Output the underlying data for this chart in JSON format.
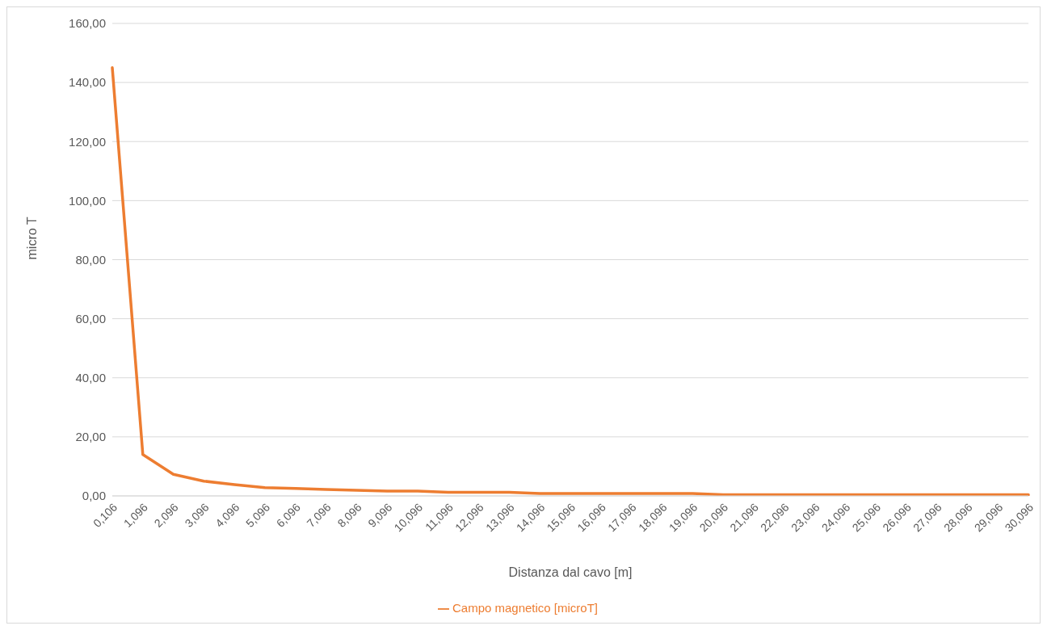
{
  "chart_data": {
    "type": "line",
    "xlabel": "Distanza dal cavo [m]",
    "ylabel": "micro T",
    "categories": [
      "0,106",
      "1,096",
      "2,096",
      "3,096",
      "4,096",
      "5,096",
      "6,096",
      "7,096",
      "8,096",
      "9,096",
      "10,096",
      "11,096",
      "12,096",
      "13,096",
      "14,096",
      "15,096",
      "16,096",
      "17,096",
      "18,096",
      "19,096",
      "20,096",
      "21,096",
      "22,096",
      "23,096",
      "24,096",
      "25,096",
      "26,096",
      "27,096",
      "28,096",
      "29,096",
      "30,096"
    ],
    "series": [
      {
        "name": "Campo magnetico [microT]",
        "color": "#ed7d31",
        "values": [
          145,
          14,
          7.3,
          5,
          3.8,
          2.8,
          2.5,
          2.2,
          1.9,
          1.6,
          1.6,
          1.2,
          1.2,
          1.2,
          0.8,
          0.8,
          0.8,
          0.8,
          0.8,
          0.8,
          0.4,
          0.4,
          0.4,
          0.4,
          0.4,
          0.4,
          0.4,
          0.4,
          0.4,
          0.4,
          0.4
        ]
      }
    ],
    "ylim": [
      0,
      160
    ],
    "yticks": [
      {
        "value": 0,
        "label": "0,00"
      },
      {
        "value": 20,
        "label": "20,00"
      },
      {
        "value": 40,
        "label": "40,00"
      },
      {
        "value": 60,
        "label": "60,00"
      },
      {
        "value": 80,
        "label": "80,00"
      },
      {
        "value": 100,
        "label": "100,00"
      },
      {
        "value": 120,
        "label": "120,00"
      },
      {
        "value": 140,
        "label": "140,00"
      },
      {
        "value": 160,
        "label": "160,00"
      }
    ],
    "grid": "y",
    "legend": "bottom",
    "marker": "none",
    "line_style": "solid"
  }
}
